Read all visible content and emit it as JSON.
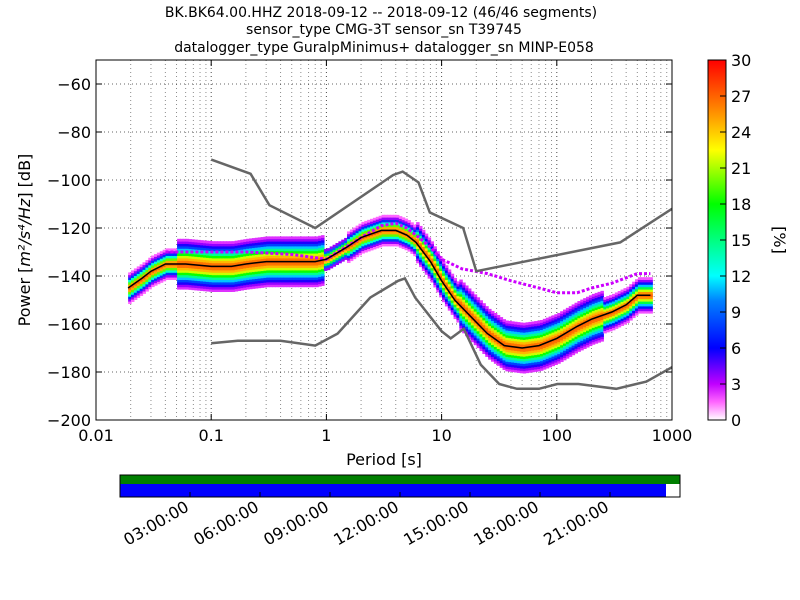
{
  "chart_data": {
    "type": "heatmap",
    "title_lines": [
      "BK.BK64.00.HHZ   2018-09-12 -- 2018-09-12  (46/46 segments)",
      "sensor_type CMG-3T sensor_sn T39745",
      "datalogger_type GuralpMinimus+ datalogger_sn MINP-E058"
    ],
    "xlabel": "Period [s]",
    "ylabel_prefix": "Power [",
    "ylabel_units": "m²/s⁴/Hz",
    "ylabel_suffix": "] [dB]",
    "x_scale": "log",
    "xlim": [
      0.01,
      1000
    ],
    "ylim": [
      -200,
      -50
    ],
    "x_ticks": [
      {
        "value": 0.01,
        "label": "0.01"
      },
      {
        "value": 0.1,
        "label": "0.1"
      },
      {
        "value": 1,
        "label": "1"
      },
      {
        "value": 10,
        "label": "10"
      },
      {
        "value": 100,
        "label": "100"
      },
      {
        "value": 1000,
        "label": "1000"
      }
    ],
    "y_ticks": [
      {
        "value": -60,
        "label": "−60"
      },
      {
        "value": -80,
        "label": "−80"
      },
      {
        "value": -100,
        "label": "−100"
      },
      {
        "value": -120,
        "label": "−120"
      },
      {
        "value": -140,
        "label": "−140"
      },
      {
        "value": -160,
        "label": "−160"
      },
      {
        "value": -180,
        "label": "−180"
      },
      {
        "value": -200,
        "label": "−200"
      }
    ],
    "grid": true,
    "nhnm": [
      [
        0.1,
        -168
      ],
      [
        0.17,
        -167
      ],
      [
        0.4,
        -167
      ],
      [
        0.8,
        -169
      ],
      [
        1.25,
        -164
      ],
      [
        2.4,
        -149
      ],
      [
        4.2,
        -142
      ],
      [
        4.8,
        -141
      ],
      [
        5.9,
        -149
      ],
      [
        10,
        -163
      ],
      [
        12,
        -166
      ],
      [
        15.6,
        -162
      ],
      [
        21.9,
        -177
      ],
      [
        31.6,
        -185
      ],
      [
        45,
        -187
      ],
      [
        70,
        -187
      ],
      [
        101,
        -185
      ],
      [
        154,
        -185
      ],
      [
        328,
        -187
      ],
      [
        600,
        -184
      ],
      [
        1000,
        -178
      ]
    ],
    "nlnm": [
      [
        0.1,
        -91.5
      ],
      [
        0.22,
        -97.4
      ],
      [
        0.32,
        -110.5
      ],
      [
        0.8,
        -120
      ],
      [
        3.8,
        -97.9
      ],
      [
        4.6,
        -96.5
      ],
      [
        6.3,
        -101
      ],
      [
        7.9,
        -113.5
      ],
      [
        15.4,
        -120
      ],
      [
        20,
        -138
      ],
      [
        354.8,
        -126
      ],
      [
        1000,
        -112
      ]
    ],
    "mode_curve": [
      [
        0.019,
        -145
      ],
      [
        0.025,
        -141
      ],
      [
        0.03,
        -138
      ],
      [
        0.04,
        -135
      ],
      [
        0.06,
        -135
      ],
      [
        0.1,
        -136
      ],
      [
        0.15,
        -136
      ],
      [
        0.2,
        -135
      ],
      [
        0.3,
        -134
      ],
      [
        0.5,
        -134
      ],
      [
        0.8,
        -134
      ],
      [
        1.0,
        -133
      ],
      [
        1.5,
        -128
      ],
      [
        2.0,
        -124
      ],
      [
        3.0,
        -121
      ],
      [
        4.0,
        -121
      ],
      [
        5.0,
        -123
      ],
      [
        6.0,
        -126
      ],
      [
        8.0,
        -134
      ],
      [
        10.0,
        -142
      ],
      [
        13.0,
        -150
      ],
      [
        18.0,
        -157
      ],
      [
        25.0,
        -164
      ],
      [
        35.0,
        -169
      ],
      [
        50.0,
        -170
      ],
      [
        70.0,
        -169
      ],
      [
        100.0,
        -166
      ],
      [
        150.0,
        -161
      ],
      [
        200.0,
        -158
      ],
      [
        300.0,
        -155
      ],
      [
        400.0,
        -152
      ],
      [
        500.0,
        -148
      ],
      [
        650.0,
        -148
      ]
    ],
    "percent_overlay": [
      [
        0.04,
        -130
      ],
      [
        0.1,
        -130
      ],
      [
        0.2,
        -130
      ],
      [
        0.5,
        -131
      ],
      [
        1.0,
        -133
      ],
      [
        2.0,
        -124
      ],
      [
        3.0,
        -119
      ],
      [
        4.0,
        -118
      ],
      [
        5.0,
        -120
      ],
      [
        6.0,
        -123
      ],
      [
        8.0,
        -128
      ],
      [
        10.0,
        -133
      ],
      [
        15.0,
        -137
      ],
      [
        25.0,
        -139
      ],
      [
        40.0,
        -142
      ],
      [
        70.0,
        -145
      ],
      [
        100.0,
        -147
      ],
      [
        150.0,
        -147
      ],
      [
        200.0,
        -145
      ],
      [
        300.0,
        -143
      ],
      [
        500.0,
        -139
      ],
      [
        650.0,
        -139
      ]
    ],
    "colorbar": {
      "label": "[%]",
      "min": 0,
      "max": 30,
      "ticks": [
        "0",
        "3",
        "6",
        "9",
        "12",
        "15",
        "18",
        "21",
        "24",
        "27",
        "30"
      ]
    },
    "coverage": {
      "time_labels": [
        "03:00:00",
        "06:00:00",
        "09:00:00",
        "12:00:00",
        "15:00:00",
        "18:00:00",
        "21:00:00"
      ],
      "processed_fraction": 1.0,
      "data_fraction": 0.975,
      "colors": {
        "processed": "#007f00",
        "data": "#0000ff"
      }
    }
  }
}
